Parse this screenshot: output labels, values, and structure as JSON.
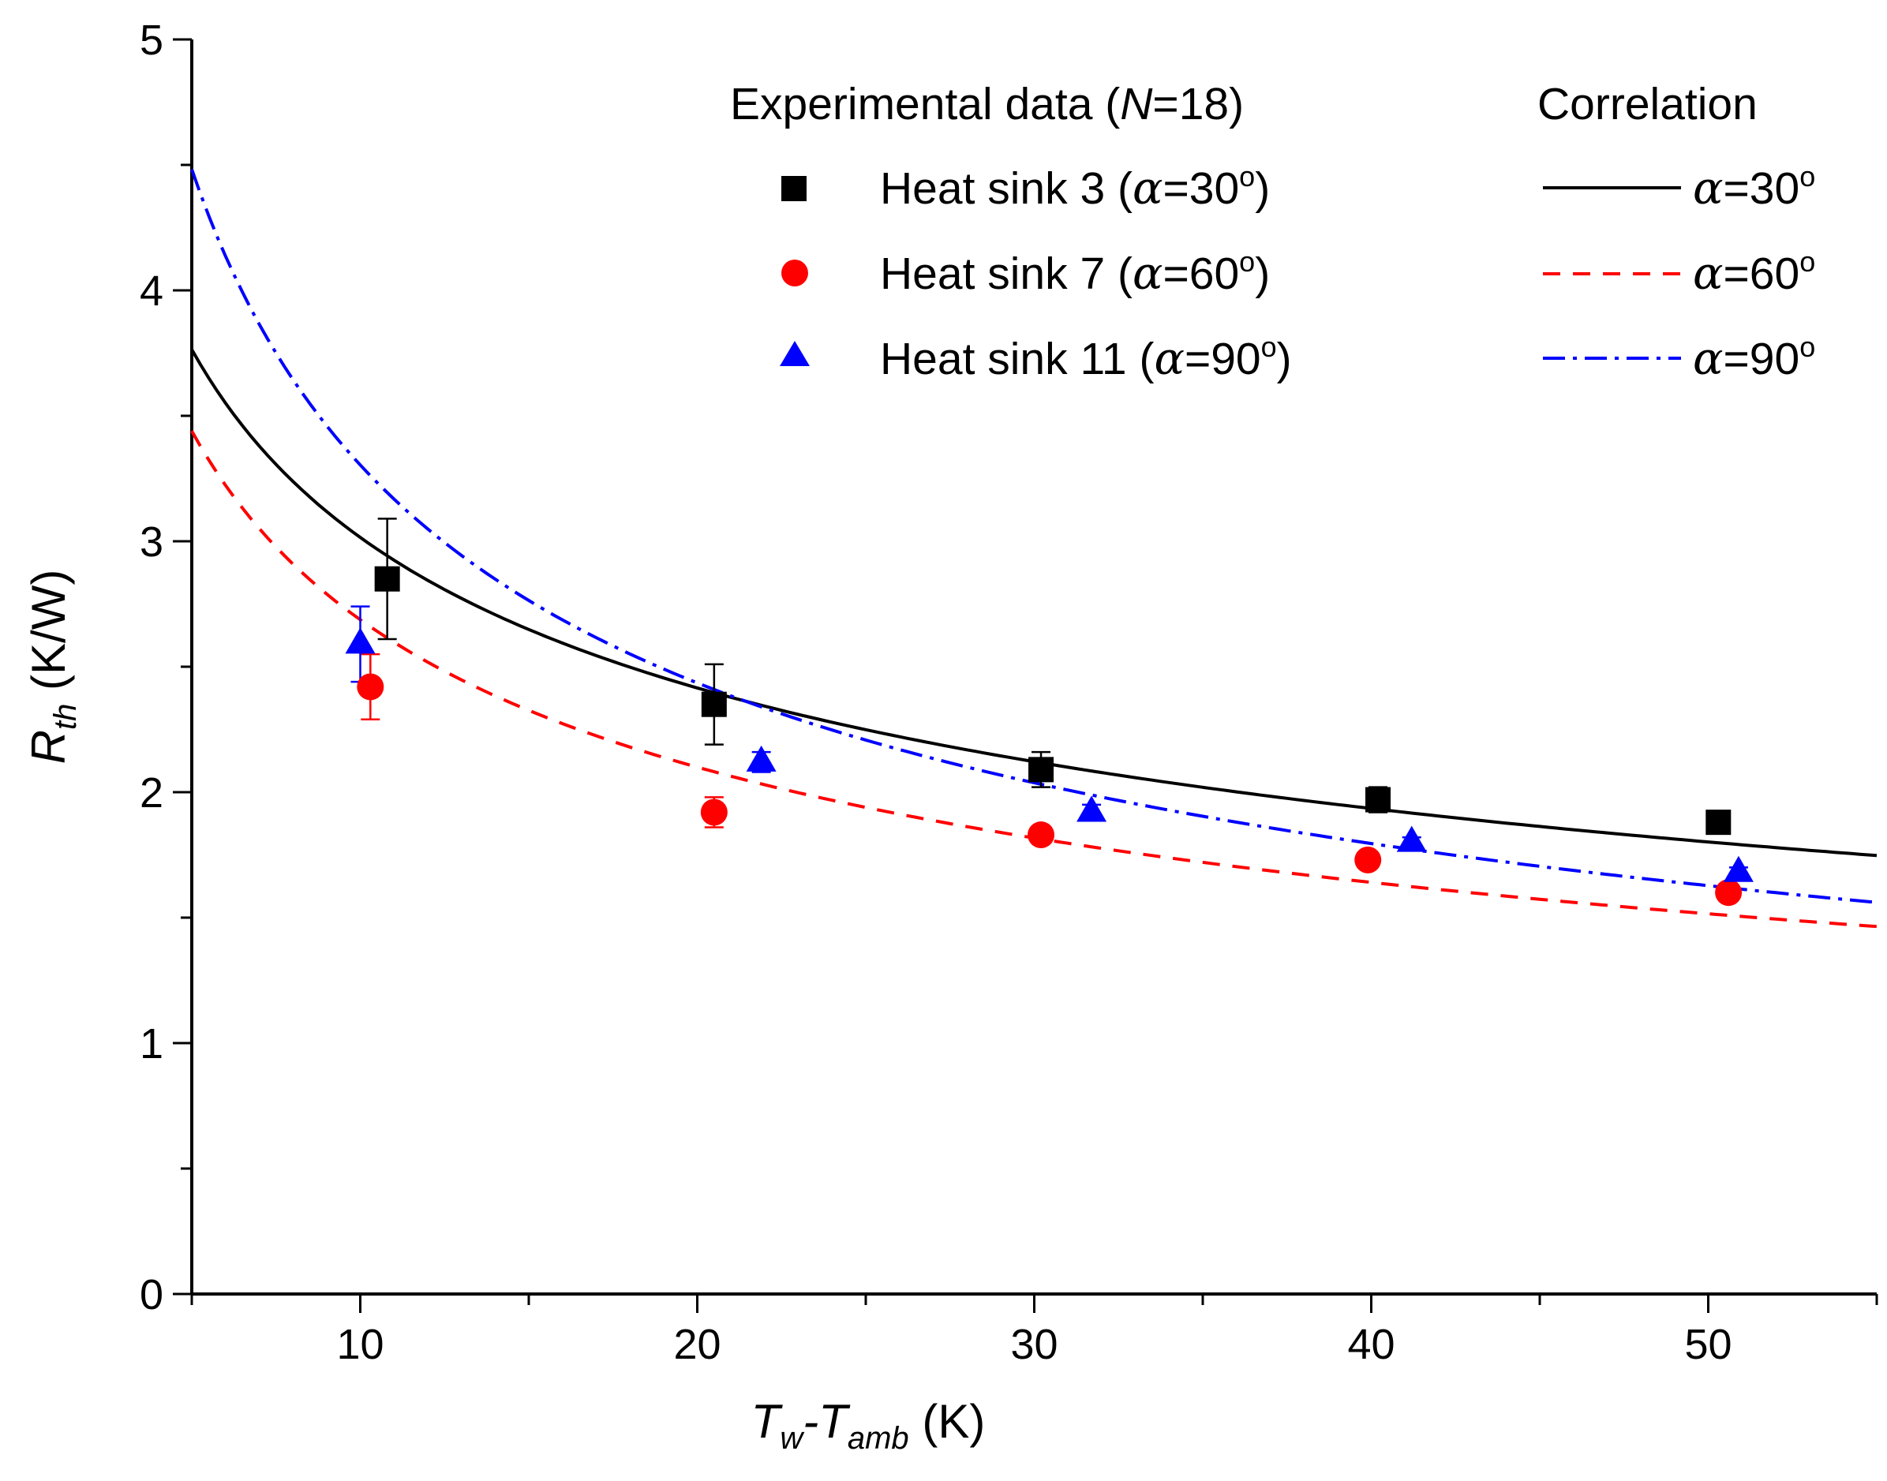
{
  "chart_data": {
    "type": "scatter",
    "title": "",
    "xlabel": {
      "main": "T",
      "sub1": "w",
      "mid": "-T",
      "sub2": "amb",
      "unit": " (K)"
    },
    "ylabel": {
      "main": "R",
      "sub": "th",
      "unit": " (K/W)"
    },
    "xlim": [
      5,
      55
    ],
    "ylim": [
      0,
      5
    ],
    "x_ticks": [
      "10",
      "20",
      "30",
      "40",
      "50"
    ],
    "x_tick_values": [
      10,
      20,
      30,
      40,
      50
    ],
    "y_ticks": [
      "0",
      "1",
      "2",
      "3",
      "4",
      "5"
    ],
    "y_tick_values": [
      0,
      1,
      2,
      3,
      4,
      5
    ],
    "grid": false,
    "legend_position": "top-right",
    "legend": {
      "experimental_header": "Experimental data (N=18)",
      "experimental_header_parts": [
        "Experimental data (",
        "N",
        "=18)"
      ],
      "correlation_header": "Correlation"
    },
    "series": [
      {
        "name": "Heat sink 3 (α=30°)",
        "label_prefix": "Heat sink 3 (",
        "label_suffix": "=30",
        "corr_label": "=30",
        "alpha_symbol": "α",
        "deg_symbol": "o",
        "close_paren": ")",
        "marker": "square",
        "color": "#000000",
        "x": [
          10.8,
          20.5,
          30.2,
          40.2,
          50.3
        ],
        "y": [
          2.85,
          2.35,
          2.09,
          1.97,
          1.88
        ],
        "yerr": [
          0.24,
          0.16,
          0.07,
          0.05,
          0.04
        ],
        "correlation": {
          "a": 6.3,
          "b": -0.32,
          "dash": "none"
        }
      },
      {
        "name": "Heat sink 7 (α=60°)",
        "label_prefix": "Heat sink 7 (",
        "label_suffix": "=60",
        "corr_label": "=60",
        "alpha_symbol": "α",
        "deg_symbol": "o",
        "close_paren": ")",
        "marker": "circle",
        "color": "#ff0000",
        "x": [
          10.3,
          20.5,
          30.2,
          39.9,
          50.6
        ],
        "y": [
          2.42,
          1.92,
          1.83,
          1.73,
          1.6
        ],
        "yerr": [
          0.13,
          0.06,
          0.03,
          0.02,
          0.02
        ],
        "correlation": {
          "a": 6.1,
          "b": -0.356,
          "dash": "22,16"
        }
      },
      {
        "name": "Heat sink 11 (α=90°)",
        "label_prefix": "Heat sink 11 (",
        "label_suffix": "=90",
        "corr_label": "=90",
        "alpha_symbol": "α",
        "deg_symbol": "o",
        "close_paren": ")",
        "marker": "triangle",
        "color": "#0000ff",
        "x": [
          10.0,
          21.9,
          31.7,
          41.2,
          50.9
        ],
        "y": [
          2.59,
          2.12,
          1.92,
          1.8,
          1.68
        ],
        "yerr": [
          0.15,
          0.04,
          0.03,
          0.02,
          0.02
        ],
        "correlation": {
          "a": 9.1,
          "b": -0.44,
          "dash": "28,10,5,10"
        }
      }
    ]
  }
}
